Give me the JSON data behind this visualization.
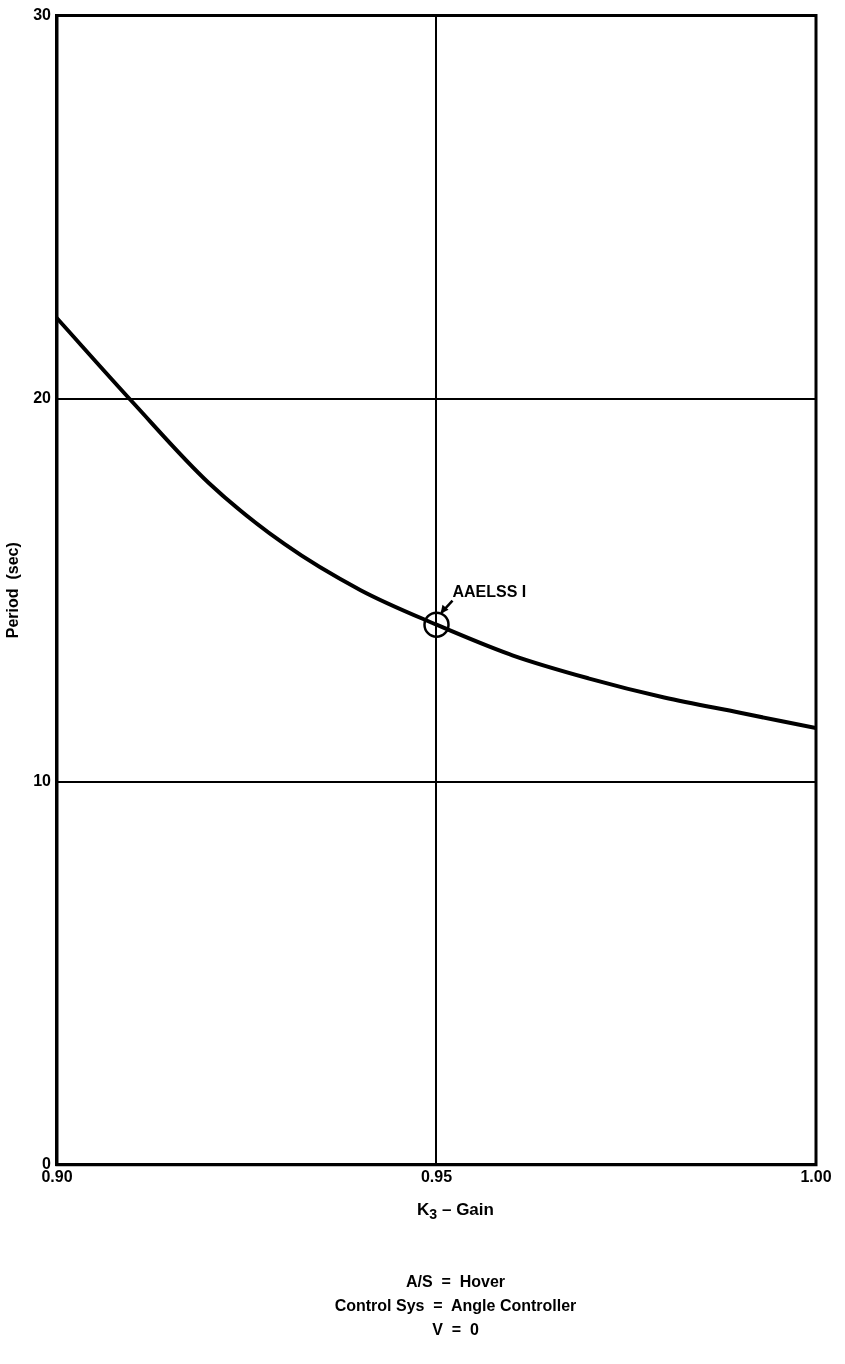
{
  "chart_data": {
    "type": "line",
    "xlabel": "K$_{3}$ – Gain",
    "ylabel": "Period  (sec)",
    "x": [
      0.9,
      0.91,
      0.92,
      0.93,
      0.94,
      0.95,
      0.96,
      0.97,
      0.98,
      0.99,
      1.0
    ],
    "series": [
      {
        "color": "#000000",
        "values": [
          22.1,
          19.9,
          17.8,
          16.2,
          15.0,
          14.1,
          13.3,
          12.7,
          12.2,
          11.8,
          11.4
        ]
      }
    ],
    "xlim": [
      0.9,
      1.0
    ],
    "xticks": [
      {
        "value": 0.9,
        "label": "0.90"
      },
      {
        "value": 0.95,
        "label": "0.95"
      },
      {
        "value": 1.0,
        "label": "1.00"
      }
    ],
    "ylim": [
      0,
      30
    ],
    "yticks": [
      0,
      10,
      20,
      30
    ],
    "grid": true,
    "legend": false,
    "marker": "none",
    "line_style": "solid",
    "annotations": [
      {
        "text": "AAELSS I",
        "x": 0.95,
        "y": 14.1
      },
      "A/S  =  Hover",
      "Control Sys  =  Angle Controller",
      "V  =  0"
    ]
  }
}
